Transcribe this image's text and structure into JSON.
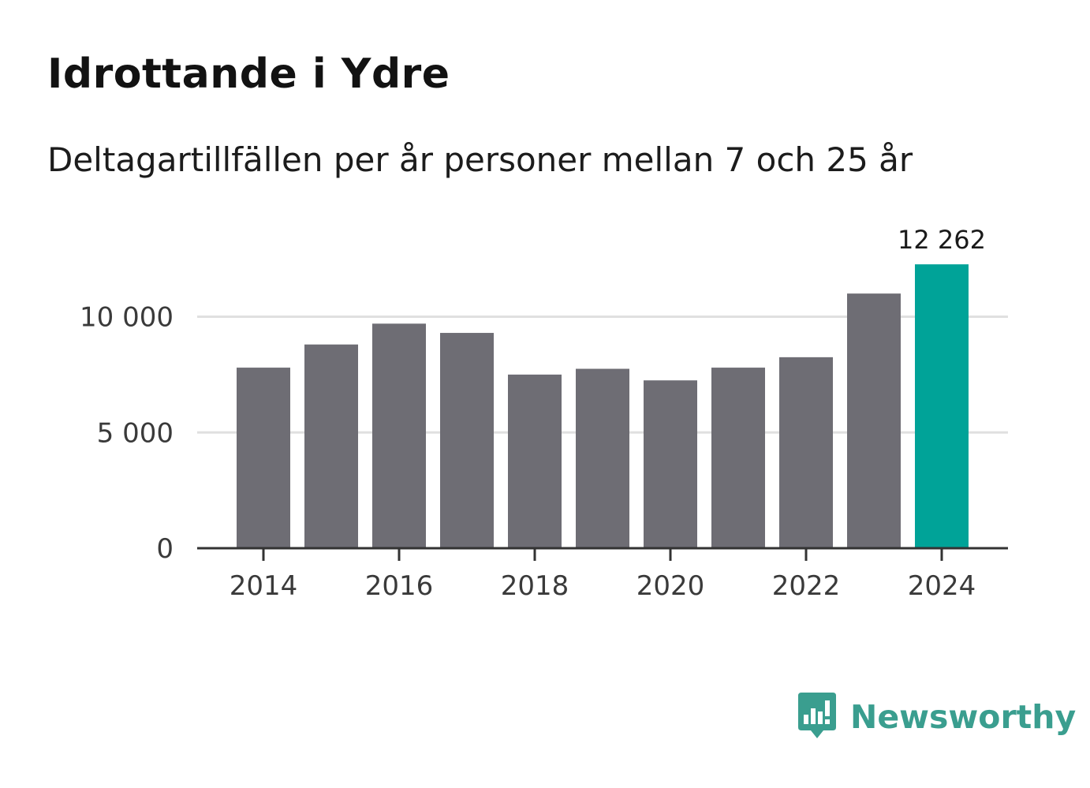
{
  "title": "Idrottande i Ydre",
  "subtitle": "Deltagartillfällen per år personer mellan 7 och 25 år",
  "brand": {
    "name": "Newsworthy",
    "color": "#3a9e8f",
    "icon": "newsworthy-logo-icon"
  },
  "colors": {
    "bar": "#6e6d74",
    "highlight": "#00a398",
    "grid": "#e0e0e0",
    "axis": "#333333"
  },
  "chart_data": {
    "type": "bar",
    "title": "Idrottande i Ydre",
    "subtitle": "Deltagartillfällen per år personer mellan 7 och 25 år",
    "xlabel": "",
    "ylabel": "",
    "categories": [
      "2014",
      "2015",
      "2016",
      "2017",
      "2018",
      "2019",
      "2020",
      "2021",
      "2022",
      "2023",
      "2024"
    ],
    "values": [
      7800,
      8800,
      9700,
      9300,
      7500,
      7750,
      7250,
      7800,
      8250,
      11000,
      12262
    ],
    "ylim": [
      0,
      12262
    ],
    "yticks": [
      0,
      5000,
      10000
    ],
    "ytick_labels": [
      "0",
      "5 000",
      "10 000"
    ],
    "xticks": [
      "2014",
      "2016",
      "2018",
      "2020",
      "2022",
      "2024"
    ],
    "highlight_index": 10,
    "highlight_label": "12 262",
    "grid": true
  }
}
